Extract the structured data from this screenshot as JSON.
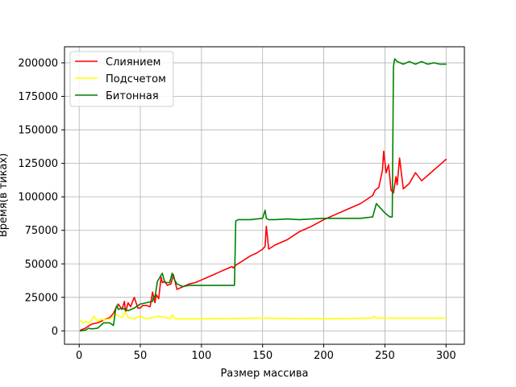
{
  "chart_data": {
    "type": "line",
    "title": "",
    "xlabel": "Размер массива",
    "ylabel": "Время(в тиках)",
    "xlim": [
      -12,
      315
    ],
    "ylim": [
      -10000,
      212000
    ],
    "xticks": [
      0,
      50,
      100,
      150,
      200,
      250,
      300
    ],
    "yticks": [
      0,
      25000,
      50000,
      75000,
      100000,
      125000,
      150000,
      175000,
      200000
    ],
    "grid": true,
    "legend_position": "top-left",
    "series": [
      {
        "name": "Слиянием",
        "color": "#ff0000",
        "x": [
          1,
          5,
          10,
          15,
          20,
          25,
          28,
          30,
          32,
          35,
          37,
          38,
          40,
          42,
          45,
          48,
          50,
          52,
          55,
          58,
          60,
          62,
          63,
          65,
          67,
          68,
          70,
          72,
          75,
          77,
          80,
          85,
          90,
          95,
          100,
          105,
          110,
          115,
          120,
          125,
          126,
          128,
          135,
          140,
          145,
          150,
          152,
          153,
          155,
          160,
          170,
          180,
          190,
          200,
          210,
          220,
          230,
          235,
          240,
          242,
          245,
          248,
          249,
          251,
          253,
          255,
          257,
          259,
          260,
          262,
          265,
          270,
          275,
          280,
          285,
          290,
          295,
          300
        ],
        "values": [
          500,
          2000,
          5000,
          6000,
          8000,
          10000,
          13000,
          17000,
          20000,
          16000,
          22000,
          14000,
          21000,
          18000,
          25000,
          17000,
          17000,
          19000,
          19000,
          18000,
          29000,
          21000,
          27000,
          24000,
          40000,
          36000,
          37000,
          34000,
          35000,
          42000,
          31000,
          33000,
          35000,
          36000,
          38000,
          40000,
          42000,
          44000,
          46000,
          48000,
          47000,
          49000,
          53000,
          56000,
          58000,
          61000,
          63000,
          78000,
          61000,
          64000,
          68000,
          74000,
          78000,
          83000,
          87000,
          91000,
          95000,
          98000,
          101000,
          105000,
          107000,
          120000,
          134000,
          118000,
          124000,
          105000,
          103000,
          115000,
          109000,
          129000,
          106000,
          110000,
          118000,
          112000,
          116000,
          120000,
          124000,
          128000
        ]
      },
      {
        "name": "Подсчетом",
        "color": "#ffff00",
        "x": [
          1,
          3,
          5,
          8,
          10,
          12,
          15,
          18,
          20,
          25,
          30,
          35,
          38,
          40,
          45,
          50,
          55,
          60,
          65,
          70,
          75,
          76,
          78,
          80,
          100,
          150,
          200,
          240,
          241,
          243,
          250,
          300
        ],
        "values": [
          8000,
          6000,
          7000,
          6000,
          7500,
          11000,
          7000,
          9000,
          8000,
          9000,
          12000,
          10000,
          14000,
          10000,
          9000,
          11000,
          9000,
          10000,
          11000,
          10000,
          9000,
          12000,
          9500,
          9000,
          9000,
          9500,
          9000,
          9500,
          11000,
          9500,
          9500,
          9500
        ]
      },
      {
        "name": "Битонная",
        "color": "#008000",
        "x": [
          1,
          5,
          8,
          10,
          15,
          20,
          25,
          28,
          30,
          31,
          32,
          35,
          40,
          45,
          50,
          55,
          60,
          61,
          62,
          64,
          66,
          68,
          70,
          74,
          76,
          78,
          80,
          85,
          90,
          100,
          110,
          120,
          127,
          128,
          130,
          140,
          150,
          152,
          153,
          155,
          160,
          170,
          180,
          190,
          200,
          210,
          220,
          230,
          240,
          243,
          245,
          250,
          254,
          255,
          256,
          257,
          258,
          260,
          265,
          270,
          275,
          280,
          285,
          290,
          295,
          300
        ],
        "values": [
          0,
          500,
          2000,
          1500,
          2000,
          6000,
          6000,
          4000,
          17000,
          19000,
          16000,
          17000,
          15000,
          17000,
          20000,
          21000,
          22000,
          26000,
          25000,
          37000,
          40000,
          43000,
          36000,
          36000,
          43000,
          38000,
          35000,
          33000,
          34000,
          34000,
          34000,
          34000,
          34000,
          82000,
          83000,
          83000,
          84000,
          90000,
          84000,
          83000,
          83000,
          83500,
          83000,
          83500,
          84000,
          84000,
          84000,
          84000,
          85000,
          95000,
          93000,
          88000,
          85000,
          85000,
          85000,
          197000,
          203000,
          201000,
          199000,
          201000,
          199000,
          201000,
          199000,
          200000,
          199000,
          199000
        ]
      }
    ]
  }
}
